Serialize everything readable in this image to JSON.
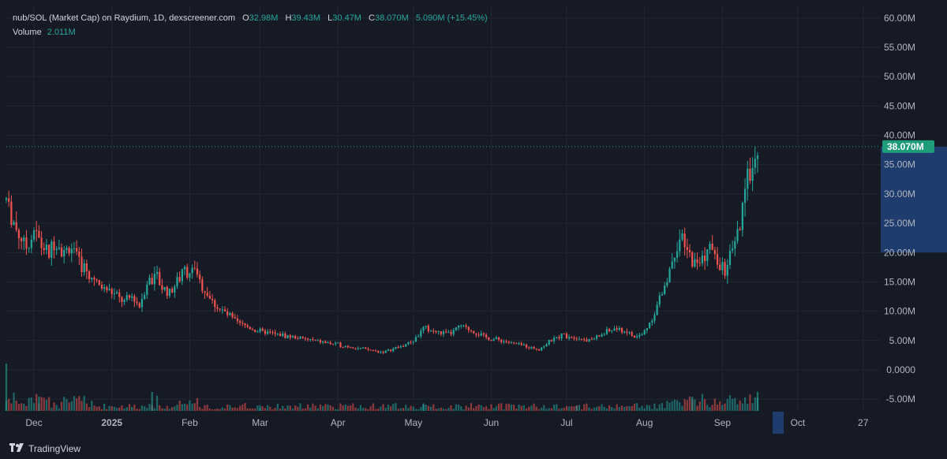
{
  "legend": {
    "symbol": "nub/SOL (Market Cap) on Raydium, 1D, dexscreener.com",
    "open_label": "O",
    "open_value": "32.98M",
    "high_label": "H",
    "high_value": "39.43M",
    "low_label": "L",
    "low_value": "30.47M",
    "close_label": "C",
    "close_value": "38.070M",
    "change": "5.090M (+15.45%)",
    "volume_label": "Volume",
    "volume_value": "2.011M"
  },
  "price_tag": "38.070M",
  "footer": {
    "brand": "TradingView"
  },
  "colors": {
    "up": "#26a69a",
    "down": "#ef5350",
    "background": "#161a25",
    "grid": "#232733",
    "price_tag": "#1e9c7c",
    "highlight": "#1e3d6e"
  },
  "chart_data": {
    "type": "candlestick",
    "y_unit": "M",
    "ylim": [
      -7,
      62
    ],
    "y_ticks": [
      "60.00M",
      "55.00M",
      "50.00M",
      "45.00M",
      "40.00M",
      "35.00M",
      "30.00M",
      "25.00M",
      "20.00M",
      "15.00M",
      "10.00M",
      "5.00M",
      "0.0000",
      "-5.00M"
    ],
    "y_tick_values": [
      60,
      55,
      50,
      45,
      40,
      35,
      30,
      25,
      20,
      15,
      10,
      5,
      0,
      -5
    ],
    "x_ticks": [
      "Dec",
      "2025",
      "Feb",
      "Mar",
      "Apr",
      "May",
      "Jun",
      "Jul",
      "Aug",
      "Sep",
      "Oct",
      "27"
    ],
    "x_tick_dates": [
      "2024-12-01",
      "2025-01-01",
      "2025-02-01",
      "2025-03-01",
      "2025-04-01",
      "2025-05-01",
      "2025-06-01",
      "2025-07-01",
      "2025-08-01",
      "2025-09-01",
      "2025-10-01",
      "2025-10-27"
    ],
    "date_range": [
      "2024-11-20",
      "2025-11-03"
    ],
    "last_close": 38.07,
    "series_close": [
      [
        "2024-11-20",
        29
      ],
      [
        "2024-11-24",
        24
      ],
      [
        "2024-11-28",
        21
      ],
      [
        "2024-12-01",
        24
      ],
      [
        "2024-12-04",
        21
      ],
      [
        "2024-12-07",
        20
      ],
      [
        "2024-12-10",
        22
      ],
      [
        "2024-12-13",
        20
      ],
      [
        "2024-12-16",
        21
      ],
      [
        "2024-12-19",
        18
      ],
      [
        "2024-12-22",
        17
      ],
      [
        "2024-12-25",
        15
      ],
      [
        "2024-12-28",
        14
      ],
      [
        "2024-12-31",
        13.5
      ],
      [
        "2025-01-03",
        12.5
      ],
      [
        "2025-01-06",
        11.5
      ],
      [
        "2025-01-09",
        12.5
      ],
      [
        "2025-01-12",
        11
      ],
      [
        "2025-01-15",
        15
      ],
      [
        "2025-01-18",
        16
      ],
      [
        "2025-01-21",
        14
      ],
      [
        "2025-01-24",
        13
      ],
      [
        "2025-01-27",
        15
      ],
      [
        "2025-01-30",
        17
      ],
      [
        "2025-02-02",
        17
      ],
      [
        "2025-02-05",
        15
      ],
      [
        "2025-02-08",
        13
      ],
      [
        "2025-02-11",
        11
      ],
      [
        "2025-02-14",
        10
      ],
      [
        "2025-02-17",
        9
      ],
      [
        "2025-02-20",
        8
      ],
      [
        "2025-02-23",
        7.5
      ],
      [
        "2025-03-01",
        6.5
      ],
      [
        "2025-03-08",
        6
      ],
      [
        "2025-03-15",
        5.5
      ],
      [
        "2025-03-22",
        5
      ],
      [
        "2025-03-29",
        4.5
      ],
      [
        "2025-04-05",
        4
      ],
      [
        "2025-04-12",
        3.5
      ],
      [
        "2025-04-19",
        3
      ],
      [
        "2025-04-26",
        4
      ],
      [
        "2025-05-01",
        5
      ],
      [
        "2025-05-05",
        7
      ],
      [
        "2025-05-10",
        6.5
      ],
      [
        "2025-05-15",
        6
      ],
      [
        "2025-05-20",
        7.5
      ],
      [
        "2025-05-25",
        6.5
      ],
      [
        "2025-05-30",
        5.5
      ],
      [
        "2025-06-05",
        5
      ],
      [
        "2025-06-10",
        4.5
      ],
      [
        "2025-06-15",
        4
      ],
      [
        "2025-06-20",
        3.5
      ],
      [
        "2025-06-25",
        5
      ],
      [
        "2025-06-30",
        6
      ],
      [
        "2025-07-05",
        5.5
      ],
      [
        "2025-07-10",
        5
      ],
      [
        "2025-07-15",
        6
      ],
      [
        "2025-07-20",
        7
      ],
      [
        "2025-07-25",
        6.5
      ],
      [
        "2025-07-28",
        5.5
      ],
      [
        "2025-07-31",
        6
      ],
      [
        "2025-08-03",
        8
      ],
      [
        "2025-08-06",
        11
      ],
      [
        "2025-08-09",
        14
      ],
      [
        "2025-08-12",
        19
      ],
      [
        "2025-08-15",
        22
      ],
      [
        "2025-08-18",
        20
      ],
      [
        "2025-08-21",
        18
      ],
      [
        "2025-08-24",
        19
      ],
      [
        "2025-08-27",
        21
      ],
      [
        "2025-08-30",
        18
      ],
      [
        "2025-09-02",
        17
      ],
      [
        "2025-09-05",
        20
      ],
      [
        "2025-09-08",
        24
      ],
      [
        "2025-09-11",
        33
      ],
      [
        "2025-09-13",
        35
      ],
      [
        "2025-09-15",
        38.07
      ]
    ],
    "series_volume": [
      [
        "2024-11-20",
        5
      ],
      [
        "2024-12-03",
        1.5
      ],
      [
        "2025-01-17",
        2.0
      ],
      [
        "2025-03-01",
        0.3
      ],
      [
        "2025-05-05",
        0.8
      ],
      [
        "2025-07-05",
        0.5
      ],
      [
        "2025-08-20",
        1.5
      ],
      [
        "2025-09-15",
        2.011
      ]
    ]
  }
}
